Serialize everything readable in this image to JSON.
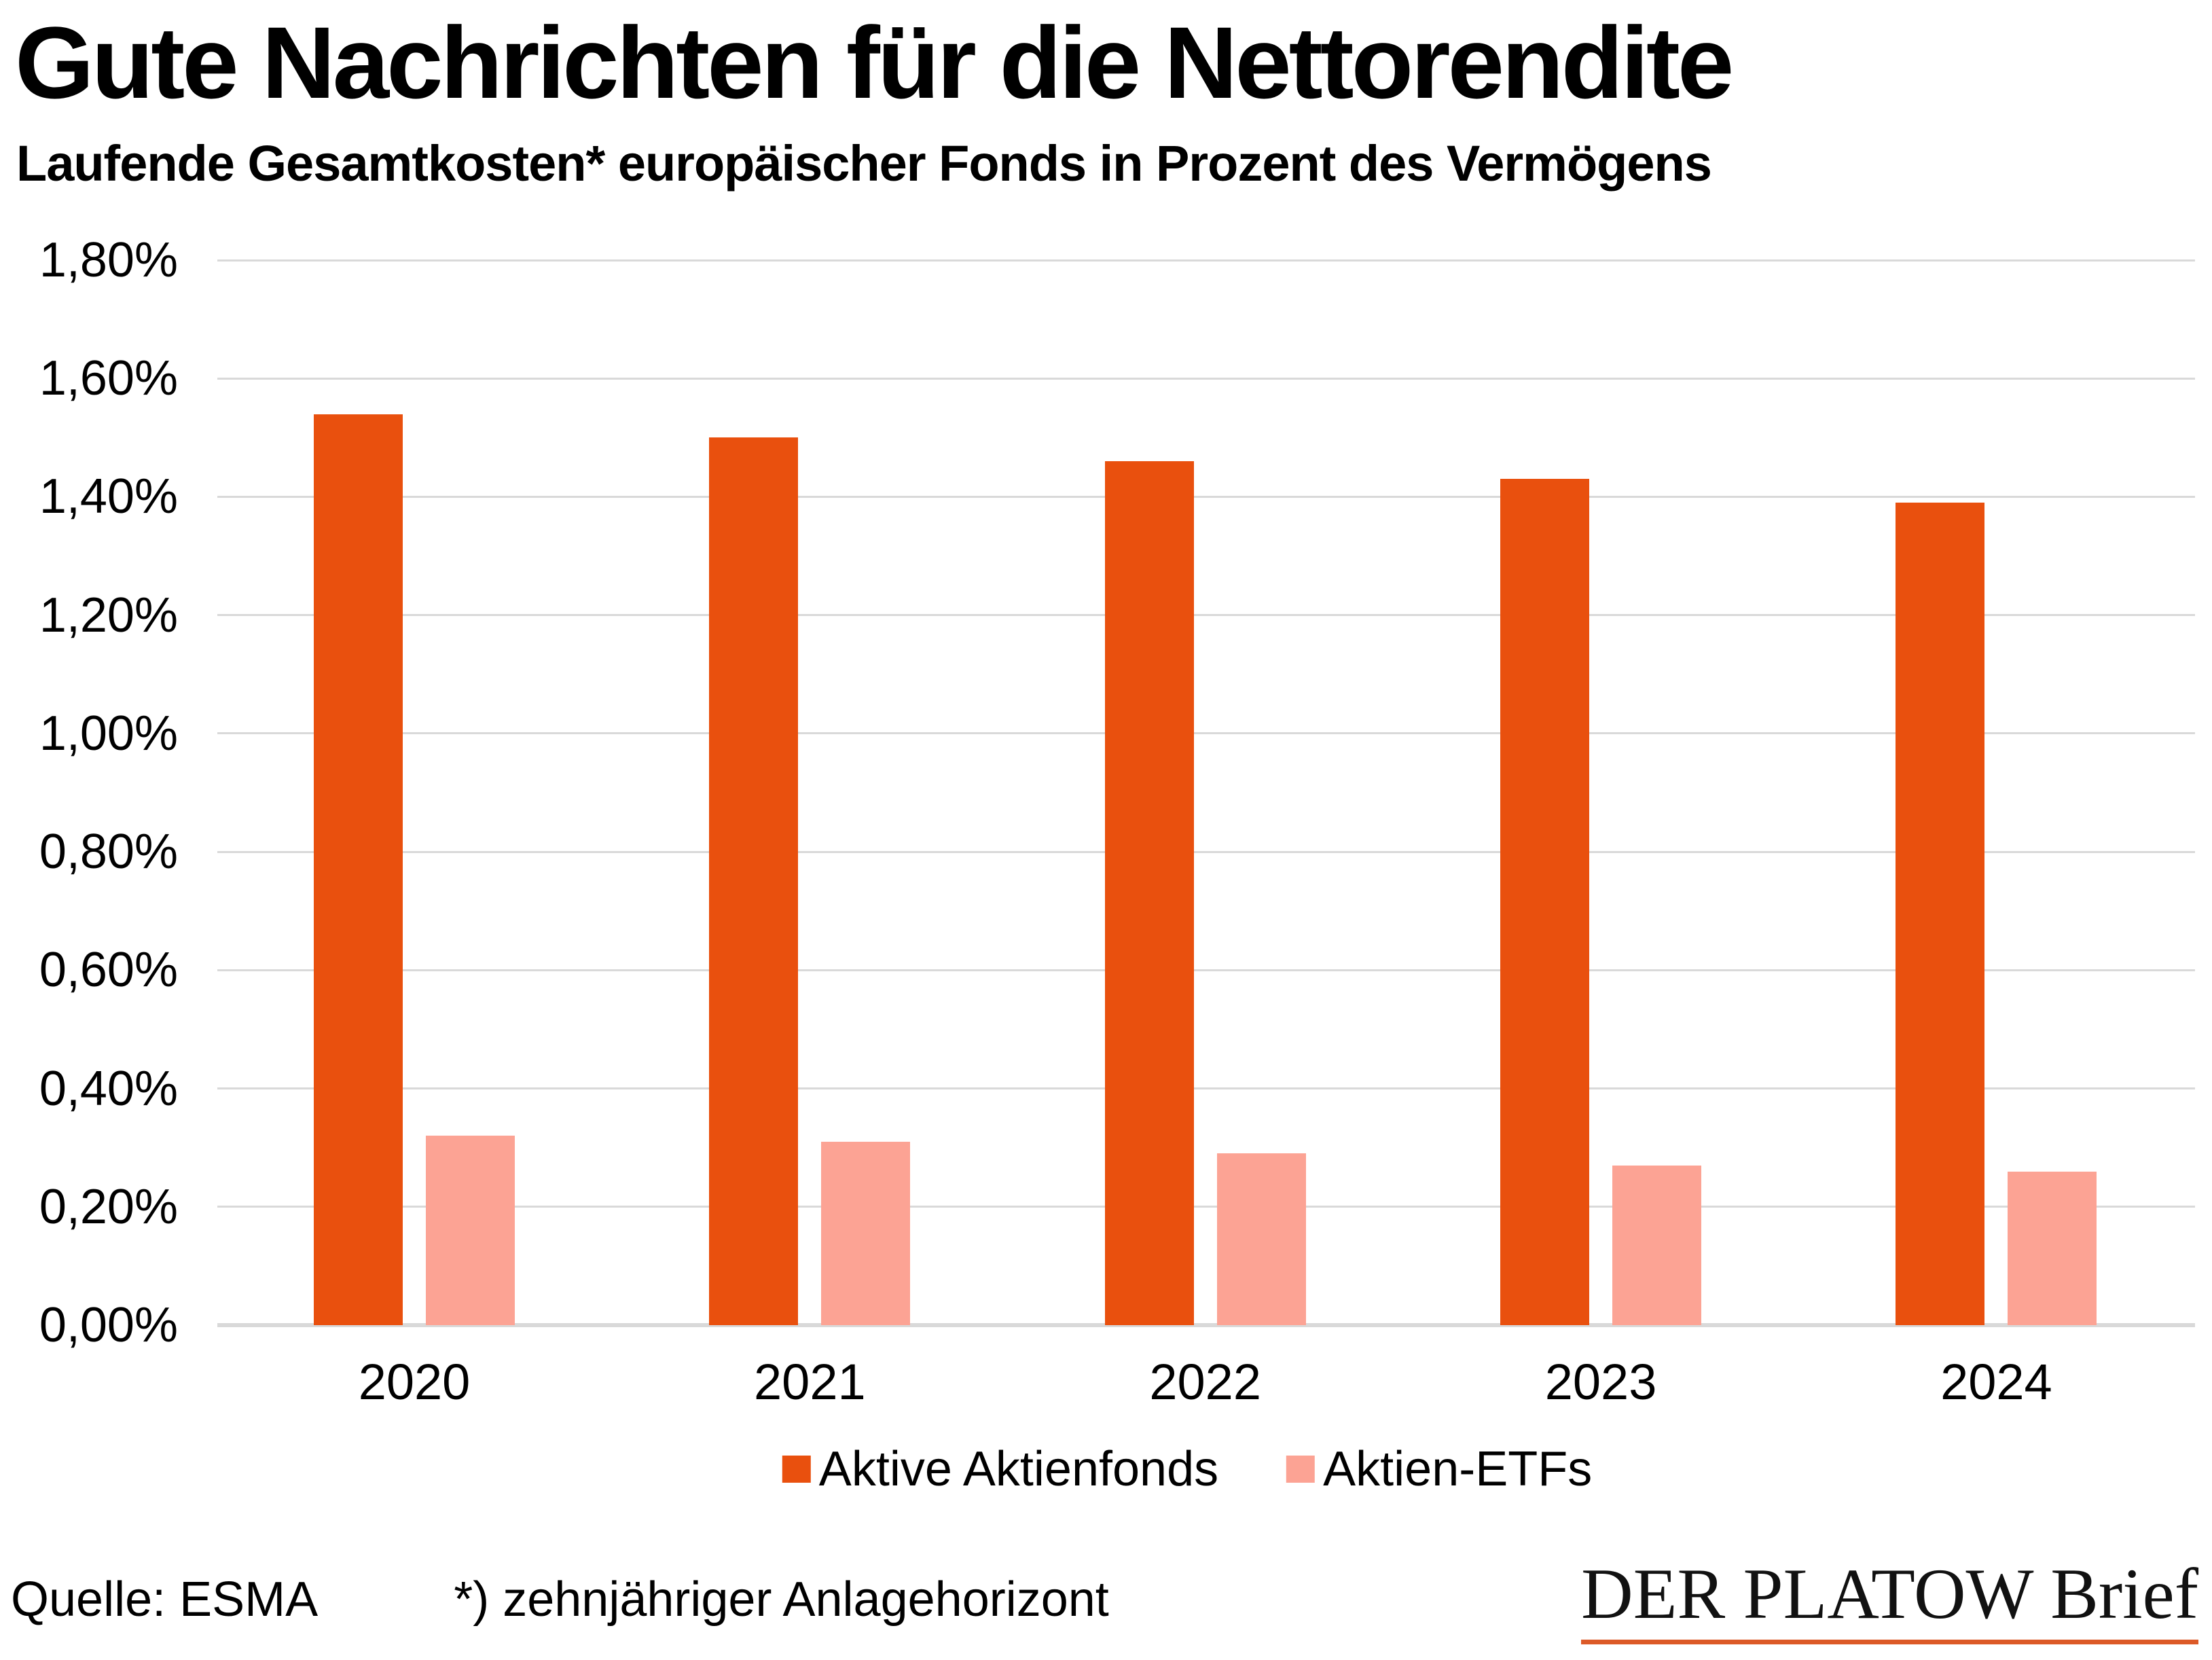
{
  "header": {
    "title": "Gute Nachrichten für die Nettorendite",
    "subtitle": "Laufende Gesamtkosten* europäischer Fonds in Prozent des Vermögens"
  },
  "chart_data": {
    "type": "bar",
    "categories": [
      "2020",
      "2021",
      "2022",
      "2023",
      "2024"
    ],
    "series": [
      {
        "name": "Aktive Aktienfonds",
        "color": "#E9500E",
        "values": [
          1.54,
          1.5,
          1.46,
          1.43,
          1.39
        ]
      },
      {
        "name": "Aktien-ETFs",
        "color": "#FCA394",
        "values": [
          0.32,
          0.31,
          0.29,
          0.27,
          0.26
        ]
      }
    ],
    "ylim": [
      0,
      1.8
    ],
    "ytick_step": 0.2,
    "ytick_labels": [
      "0,00%",
      "0,20%",
      "0,40%",
      "0,60%",
      "0,80%",
      "1,00%",
      "1,20%",
      "1,40%",
      "1,60%",
      "1,80%"
    ],
    "value_suffix": "%",
    "grid": true,
    "gridline_color": "#D9D9D9",
    "legend_position": "bottom",
    "xlabel": "",
    "ylabel": ""
  },
  "footer": {
    "source": "Quelle: ESMA",
    "note": "*) zehnjähriger Anlagehorizont"
  },
  "logo": {
    "name": "DER PLATOW Brief",
    "underline_color": "#DC5A28"
  }
}
